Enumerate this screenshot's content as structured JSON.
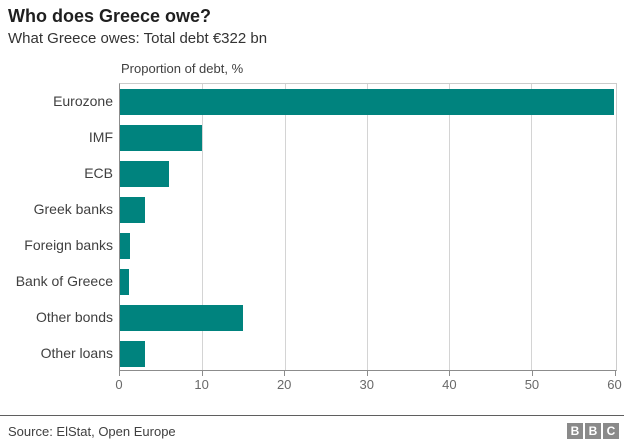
{
  "header": {
    "title": "Who does Greece owe?",
    "subtitle": "What Greece owes: Total debt €322 bn"
  },
  "chart_data": {
    "type": "bar",
    "orientation": "horizontal",
    "axis_title": "Proportion of debt, %",
    "categories": [
      "Eurozone",
      "IMF",
      "ECB",
      "Greek banks",
      "Foreign banks",
      "Bank of Greece",
      "Other bonds",
      "Other loans"
    ],
    "values": [
      60,
      10,
      6,
      3,
      1.2,
      1.1,
      15,
      3
    ],
    "xticks": [
      0,
      10,
      20,
      30,
      40,
      50,
      60
    ],
    "gridline_values": [
      10,
      20,
      30,
      40,
      50
    ],
    "xlim": [
      0,
      60.3
    ],
    "grid": true,
    "legend": "none",
    "bar_color": "#00837E"
  },
  "footer": {
    "source": "Source: ElStat, Open Europe",
    "logo_letters": [
      "B",
      "B",
      "C"
    ]
  },
  "colors": {
    "bar": "#00837E",
    "axis_line": "#8c8c8c",
    "frame_line": "#cccccc",
    "gridline": "#d4d4d4",
    "tick_label": "#696969",
    "category_label": "#404040",
    "title": "#1f1f1f"
  }
}
